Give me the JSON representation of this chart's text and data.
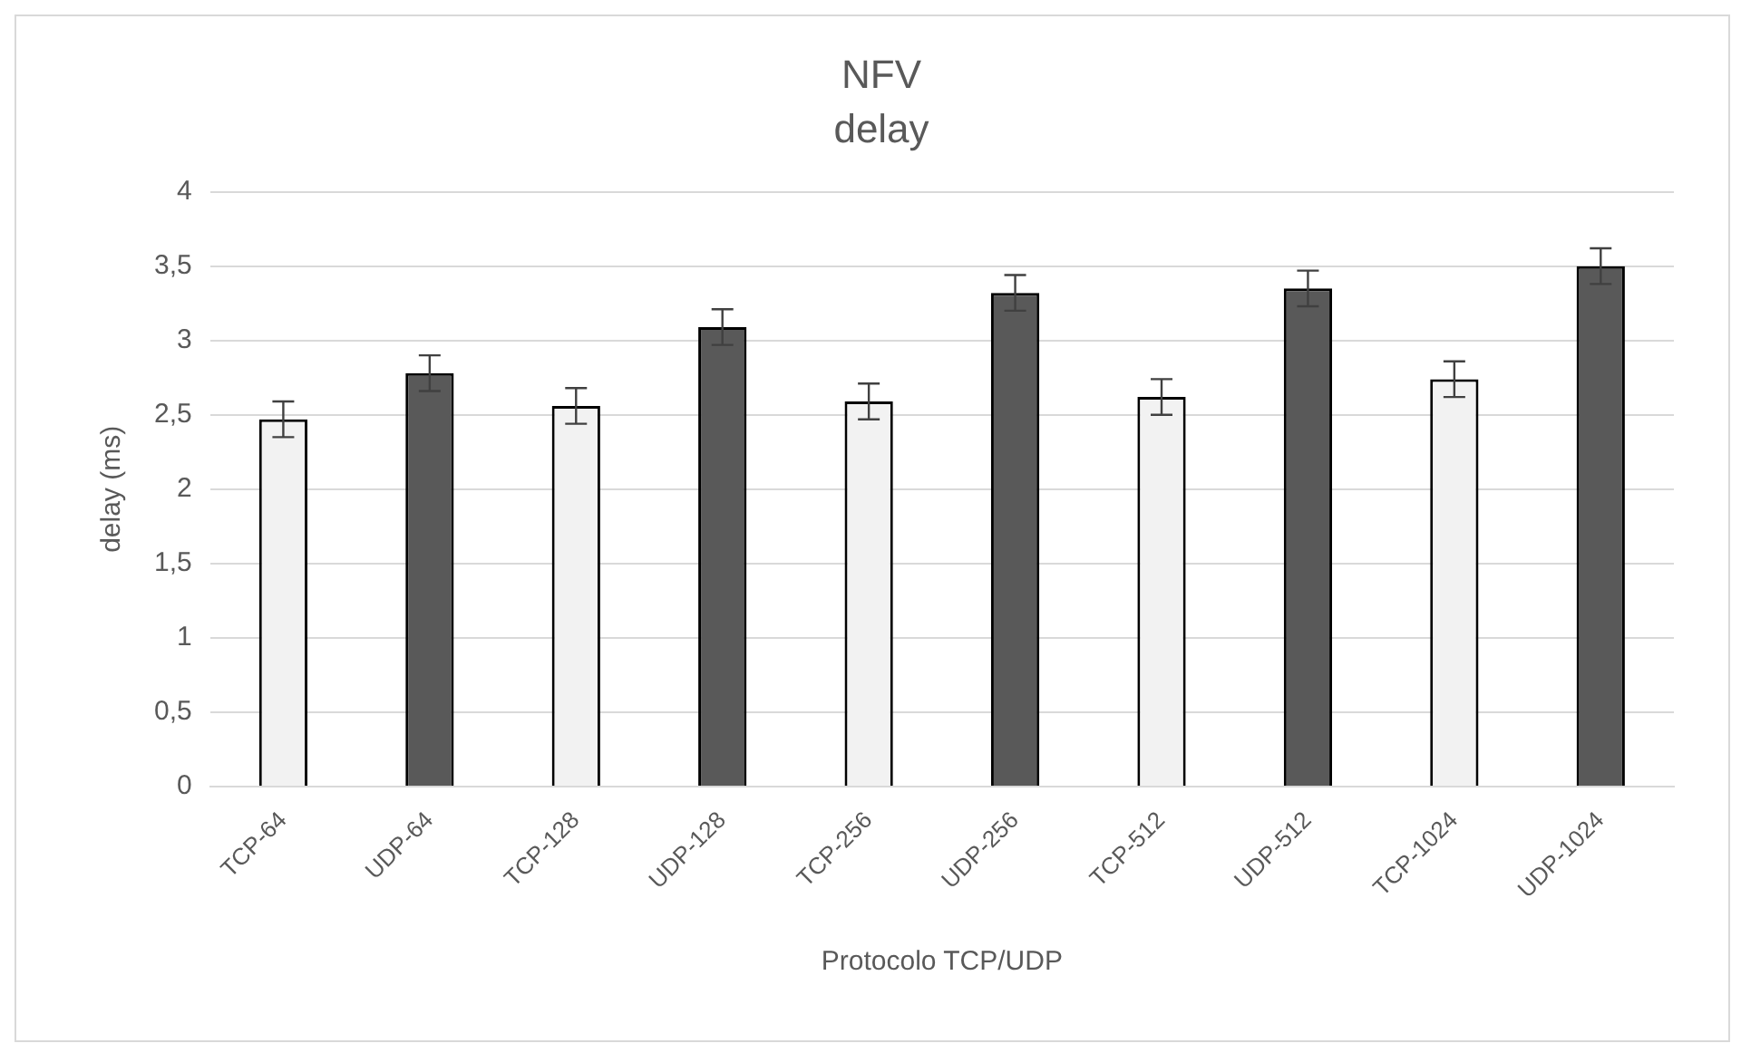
{
  "chart_data": {
    "type": "bar",
    "title": "NFV",
    "subtitle": "delay",
    "xlabel": "Protocolo TCP/UDP",
    "ylabel": "delay (ms)",
    "categories": [
      "TCP-64",
      "UDP-64",
      "TCP-128",
      "UDP-128",
      "TCP-256",
      "UDP-256",
      "TCP-512",
      "UDP-512",
      "TCP-1024",
      "UDP-1024"
    ],
    "values": [
      2.47,
      2.78,
      2.56,
      3.09,
      2.59,
      3.32,
      2.62,
      3.35,
      2.74,
      3.5
    ],
    "errors": [
      0.12,
      0.12,
      0.12,
      0.12,
      0.12,
      0.12,
      0.12,
      0.12,
      0.12,
      0.12
    ],
    "colors": [
      "#f2f2f2",
      "#595959",
      "#f2f2f2",
      "#595959",
      "#f2f2f2",
      "#595959",
      "#f2f2f2",
      "#595959",
      "#f2f2f2",
      "#595959"
    ],
    "ylim": [
      0,
      4
    ],
    "yticks": [
      0,
      {
        "value": 0.5,
        "label": "0,5"
      },
      1,
      {
        "value": 1.5,
        "label": "1,5"
      },
      2,
      {
        "value": 2.5,
        "label": "2,5"
      },
      3,
      {
        "value": 3.5,
        "label": "3,5"
      },
      4
    ],
    "grid": "y",
    "legend": false
  }
}
